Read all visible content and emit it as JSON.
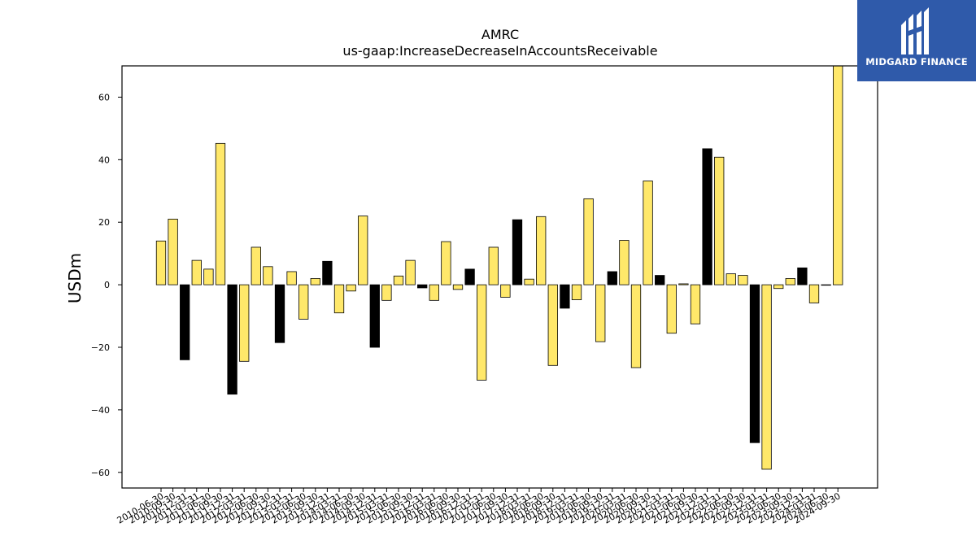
{
  "chart_data": {
    "type": "bar",
    "title": "AMRC",
    "subtitle": "us-gaap:IncreaseDecreaseInAccountsReceivable",
    "xlabel": "",
    "ylabel": "USDm",
    "ylim": [
      -65,
      70
    ],
    "yticks": [
      -60,
      -40,
      -20,
      0,
      20,
      40,
      60
    ],
    "grid": false,
    "colors": {
      "highlight": "#000000",
      "default": "#ffe86a",
      "edge": "#000000"
    },
    "categories": [
      "2010-06-30",
      "2010-09-30",
      "2010-12-31",
      "2011-03-31",
      "2011-06-30",
      "2011-09-30",
      "2011-12-31",
      "2012-03-31",
      "2012-06-30",
      "2012-09-30",
      "2012-12-31",
      "2013-03-31",
      "2013-06-30",
      "2013-09-30",
      "2013-12-31",
      "2014-03-31",
      "2014-06-30",
      "2014-09-30",
      "2014-12-31",
      "2015-03-31",
      "2015-06-30",
      "2015-09-30",
      "2015-12-31",
      "2016-03-31",
      "2016-06-30",
      "2016-09-30",
      "2016-12-31",
      "2017-03-31",
      "2017-06-30",
      "2017-09-30",
      "2017-12-31",
      "2018-03-31",
      "2018-06-30",
      "2018-09-30",
      "2018-12-31",
      "2019-03-31",
      "2019-06-30",
      "2019-09-30",
      "2019-12-31",
      "2020-03-31",
      "2020-06-30",
      "2020-09-30",
      "2020-12-31",
      "2021-03-31",
      "2021-06-30",
      "2021-09-30",
      "2021-12-31",
      "2022-03-31",
      "2022-06-30",
      "2022-09-30",
      "2022-12-31",
      "2023-03-31",
      "2023-06-30",
      "2023-09-30",
      "2023-12-31",
      "2024-03-31",
      "2024-06-30",
      "2024-09-30"
    ],
    "values": [
      14.0,
      21.0,
      -24.0,
      7.8,
      5.0,
      45.2,
      -35.0,
      -24.5,
      12.0,
      5.8,
      -18.5,
      4.2,
      -11.0,
      2.0,
      7.5,
      -9.0,
      -2.0,
      22.0,
      -20.0,
      -5.0,
      2.8,
      7.8,
      -1.0,
      -5.0,
      13.8,
      -1.5,
      5.0,
      -30.5,
      12.0,
      -4.0,
      20.8,
      1.8,
      21.8,
      -25.8,
      -7.5,
      -4.8,
      27.5,
      -18.2,
      4.2,
      14.2,
      -26.5,
      33.2,
      3.0,
      -15.5,
      0.3,
      -12.5,
      43.5,
      40.8,
      3.5,
      3.0,
      -50.5,
      -59.0,
      -1.2,
      2.0,
      5.4,
      -5.8,
      0.0,
      72.0
    ],
    "highlight": [
      false,
      false,
      true,
      false,
      false,
      false,
      true,
      false,
      false,
      false,
      true,
      false,
      false,
      false,
      true,
      false,
      false,
      false,
      true,
      false,
      false,
      false,
      true,
      false,
      false,
      false,
      true,
      false,
      false,
      false,
      true,
      false,
      false,
      false,
      true,
      false,
      false,
      false,
      true,
      false,
      false,
      false,
      true,
      false,
      false,
      false,
      true,
      false,
      false,
      false,
      true,
      false,
      false,
      false,
      true,
      false,
      false,
      false
    ]
  },
  "logo": {
    "text": "MIDGARD FINANCE"
  }
}
